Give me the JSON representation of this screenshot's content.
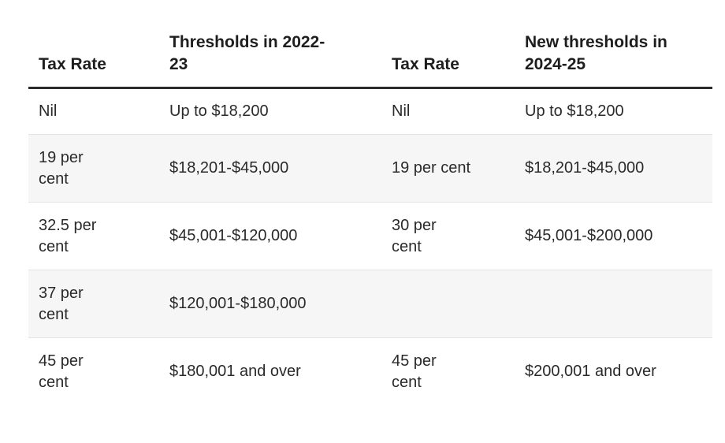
{
  "table": {
    "headers": [
      "Tax Rate",
      "Thresholds in 2022-23",
      "Tax Rate",
      "New thresholds in 2024-25"
    ],
    "rows": [
      [
        "Nil",
        "Up to $18,200",
        "Nil",
        "Up to $18,200"
      ],
      [
        "19 per cent",
        "$18,201-$45,000",
        "19 per cent",
        "$18,201-$45,000"
      ],
      [
        "32.5 per cent",
        "$45,001-$120,000",
        "30 per cent",
        "$45,001-$200,000"
      ],
      [
        "37 per cent",
        "$120,001-$180,000",
        "",
        ""
      ],
      [
        "45 per cent",
        "$180,001 and over",
        "45 per cent",
        "$200,001 and over"
      ]
    ]
  }
}
